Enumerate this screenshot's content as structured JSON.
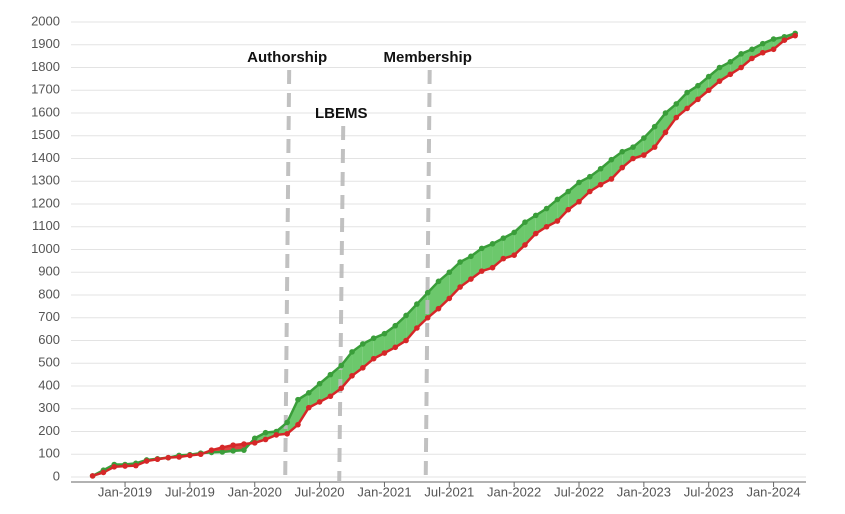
{
  "chart_data": {
    "type": "line",
    "x": [
      "2018-10",
      "2018-11",
      "2018-12",
      "2019-01",
      "2019-02",
      "2019-03",
      "2019-04",
      "2019-05",
      "2019-06",
      "2019-07",
      "2019-08",
      "2019-09",
      "2019-10",
      "2019-11",
      "2019-12",
      "2020-01",
      "2020-02",
      "2020-03",
      "2020-04",
      "2020-05",
      "2020-06",
      "2020-07",
      "2020-08",
      "2020-09",
      "2020-10",
      "2020-11",
      "2020-12",
      "2021-01",
      "2021-02",
      "2021-03",
      "2021-04",
      "2021-05",
      "2021-06",
      "2021-07",
      "2021-08",
      "2021-09",
      "2021-10",
      "2021-11",
      "2021-12",
      "2022-01",
      "2022-02",
      "2022-03",
      "2022-04",
      "2022-05",
      "2022-06",
      "2022-07",
      "2022-08",
      "2022-09",
      "2022-10",
      "2022-11",
      "2022-12",
      "2023-01",
      "2023-02",
      "2023-03",
      "2023-04",
      "2023-05",
      "2023-06",
      "2023-07",
      "2023-08",
      "2023-09",
      "2023-10",
      "2023-11",
      "2023-12",
      "2024-01",
      "2024-02",
      "2024-03"
    ],
    "series": [
      {
        "color": "#3a9e3a",
        "fill": "#6cc86c",
        "values": [
          5,
          30,
          55,
          55,
          60,
          75,
          80,
          85,
          95,
          98,
          105,
          108,
          110,
          115,
          118,
          170,
          195,
          200,
          240,
          340,
          370,
          410,
          450,
          490,
          550,
          585,
          610,
          630,
          665,
          710,
          760,
          810,
          860,
          900,
          945,
          970,
          1005,
          1025,
          1050,
          1075,
          1120,
          1150,
          1180,
          1220,
          1255,
          1295,
          1320,
          1355,
          1395,
          1430,
          1450,
          1490,
          1540,
          1600,
          1640,
          1690,
          1720,
          1760,
          1800,
          1825,
          1860,
          1880,
          1905,
          1925,
          1935,
          1950
        ]
      },
      {
        "color": "#d62728",
        "fill": "#dd4040",
        "values": [
          5,
          20,
          45,
          48,
          50,
          70,
          78,
          85,
          88,
          95,
          100,
          118,
          130,
          140,
          145,
          150,
          165,
          185,
          190,
          230,
          305,
          330,
          355,
          390,
          445,
          480,
          520,
          545,
          570,
          600,
          655,
          700,
          740,
          785,
          835,
          870,
          905,
          920,
          960,
          975,
          1020,
          1070,
          1100,
          1125,
          1175,
          1210,
          1255,
          1285,
          1310,
          1360,
          1400,
          1415,
          1450,
          1515,
          1580,
          1620,
          1660,
          1700,
          1740,
          1770,
          1800,
          1840,
          1865,
          1880,
          1920,
          1940
        ]
      }
    ],
    "annotations": [
      {
        "label": "Authorship",
        "x": "2020-04"
      },
      {
        "label": "LBEMS",
        "x": "2020-09"
      },
      {
        "label": "Membership",
        "x": "2021-05"
      }
    ],
    "xlim": [
      "2018-08",
      "2024-04"
    ],
    "xticks": [
      {
        "value": "2019-01",
        "label": "Jan-2019"
      },
      {
        "value": "2019-07",
        "label": "Jul-2019"
      },
      {
        "value": "2020-01",
        "label": "Jan-2020"
      },
      {
        "value": "2020-07",
        "label": "Jul-2020"
      },
      {
        "value": "2021-01",
        "label": "Jan-2021"
      },
      {
        "value": "2021-07",
        "label": "Jul-2021"
      },
      {
        "value": "2022-01",
        "label": "Jan-2022"
      },
      {
        "value": "2022-07",
        "label": "Jul-2022"
      },
      {
        "value": "2023-01",
        "label": "Jan-2023"
      },
      {
        "value": "2023-07",
        "label": "Jul-2023"
      },
      {
        "value": "2024-01",
        "label": "Jan-2024"
      }
    ],
    "ylim": [
      0,
      2000
    ],
    "yticks": [
      0,
      100,
      200,
      300,
      400,
      500,
      600,
      700,
      800,
      900,
      1000,
      1100,
      1200,
      1300,
      1400,
      1500,
      1600,
      1700,
      1800,
      1900,
      2000
    ],
    "grid": true
  }
}
